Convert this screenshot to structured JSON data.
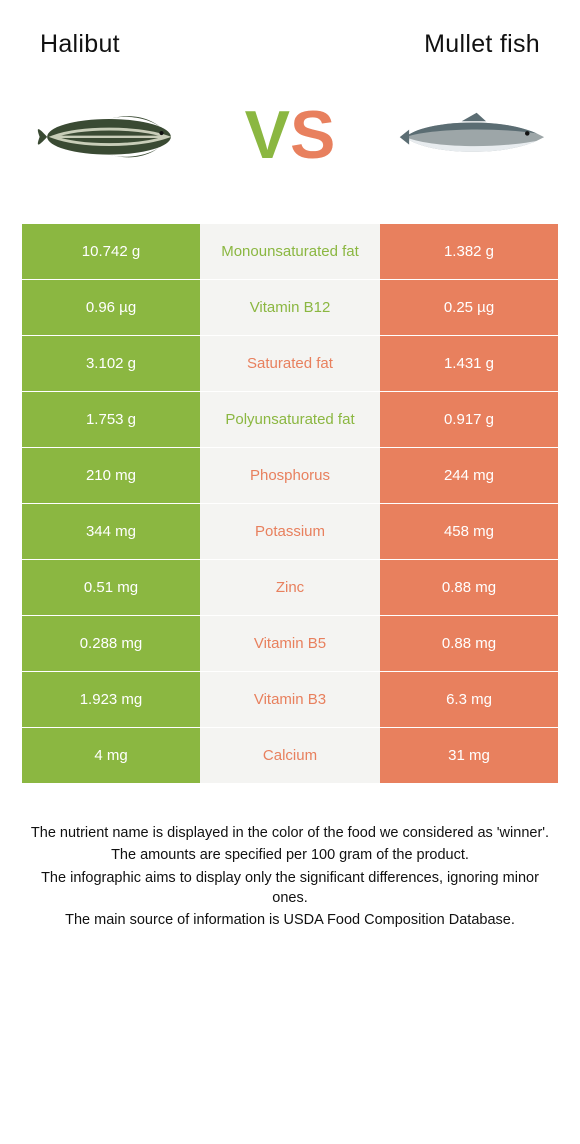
{
  "colors": {
    "left_food": "#8bb741",
    "right_food": "#e8805e",
    "mid_bg": "#f4f4f2",
    "vs_v": "#8bb741",
    "vs_s": "#e8805e"
  },
  "header": {
    "left_title": "Halibut",
    "right_title": "Mullet fish"
  },
  "hero": {
    "vs_v": "V",
    "vs_s": "S",
    "left_fish": {
      "body_fill": "#3a4a33",
      "stripe": "#c8cdb8"
    },
    "right_fish": {
      "body_fill": "#9da6a8",
      "top_fill": "#5b6d73",
      "belly_fill": "#e8ecef"
    }
  },
  "rows": [
    {
      "left": "10.742 g",
      "mid": "Monounsaturated fat",
      "right": "1.382 g",
      "winner": "left"
    },
    {
      "left": "0.96 µg",
      "mid": "Vitamin B12",
      "right": "0.25 µg",
      "winner": "left"
    },
    {
      "left": "3.102 g",
      "mid": "Saturated fat",
      "right": "1.431 g",
      "winner": "right"
    },
    {
      "left": "1.753 g",
      "mid": "Polyunsaturated fat",
      "right": "0.917 g",
      "winner": "left"
    },
    {
      "left": "210 mg",
      "mid": "Phosphorus",
      "right": "244 mg",
      "winner": "right"
    },
    {
      "left": "344 mg",
      "mid": "Potassium",
      "right": "458 mg",
      "winner": "right"
    },
    {
      "left": "0.51 mg",
      "mid": "Zinc",
      "right": "0.88 mg",
      "winner": "right"
    },
    {
      "left": "0.288 mg",
      "mid": "Vitamin B5",
      "right": "0.88 mg",
      "winner": "right"
    },
    {
      "left": "1.923 mg",
      "mid": "Vitamin B3",
      "right": "6.3 mg",
      "winner": "right"
    },
    {
      "left": "4 mg",
      "mid": "Calcium",
      "right": "31 mg",
      "winner": "right"
    }
  ],
  "footnotes": [
    "The nutrient name is displayed in the color of the food we considered as 'winner'.",
    "The amounts are specified per 100 gram of the product.",
    "The infographic aims to display only the significant differences, ignoring minor ones.",
    "The main source of information is USDA Food Composition Database."
  ]
}
